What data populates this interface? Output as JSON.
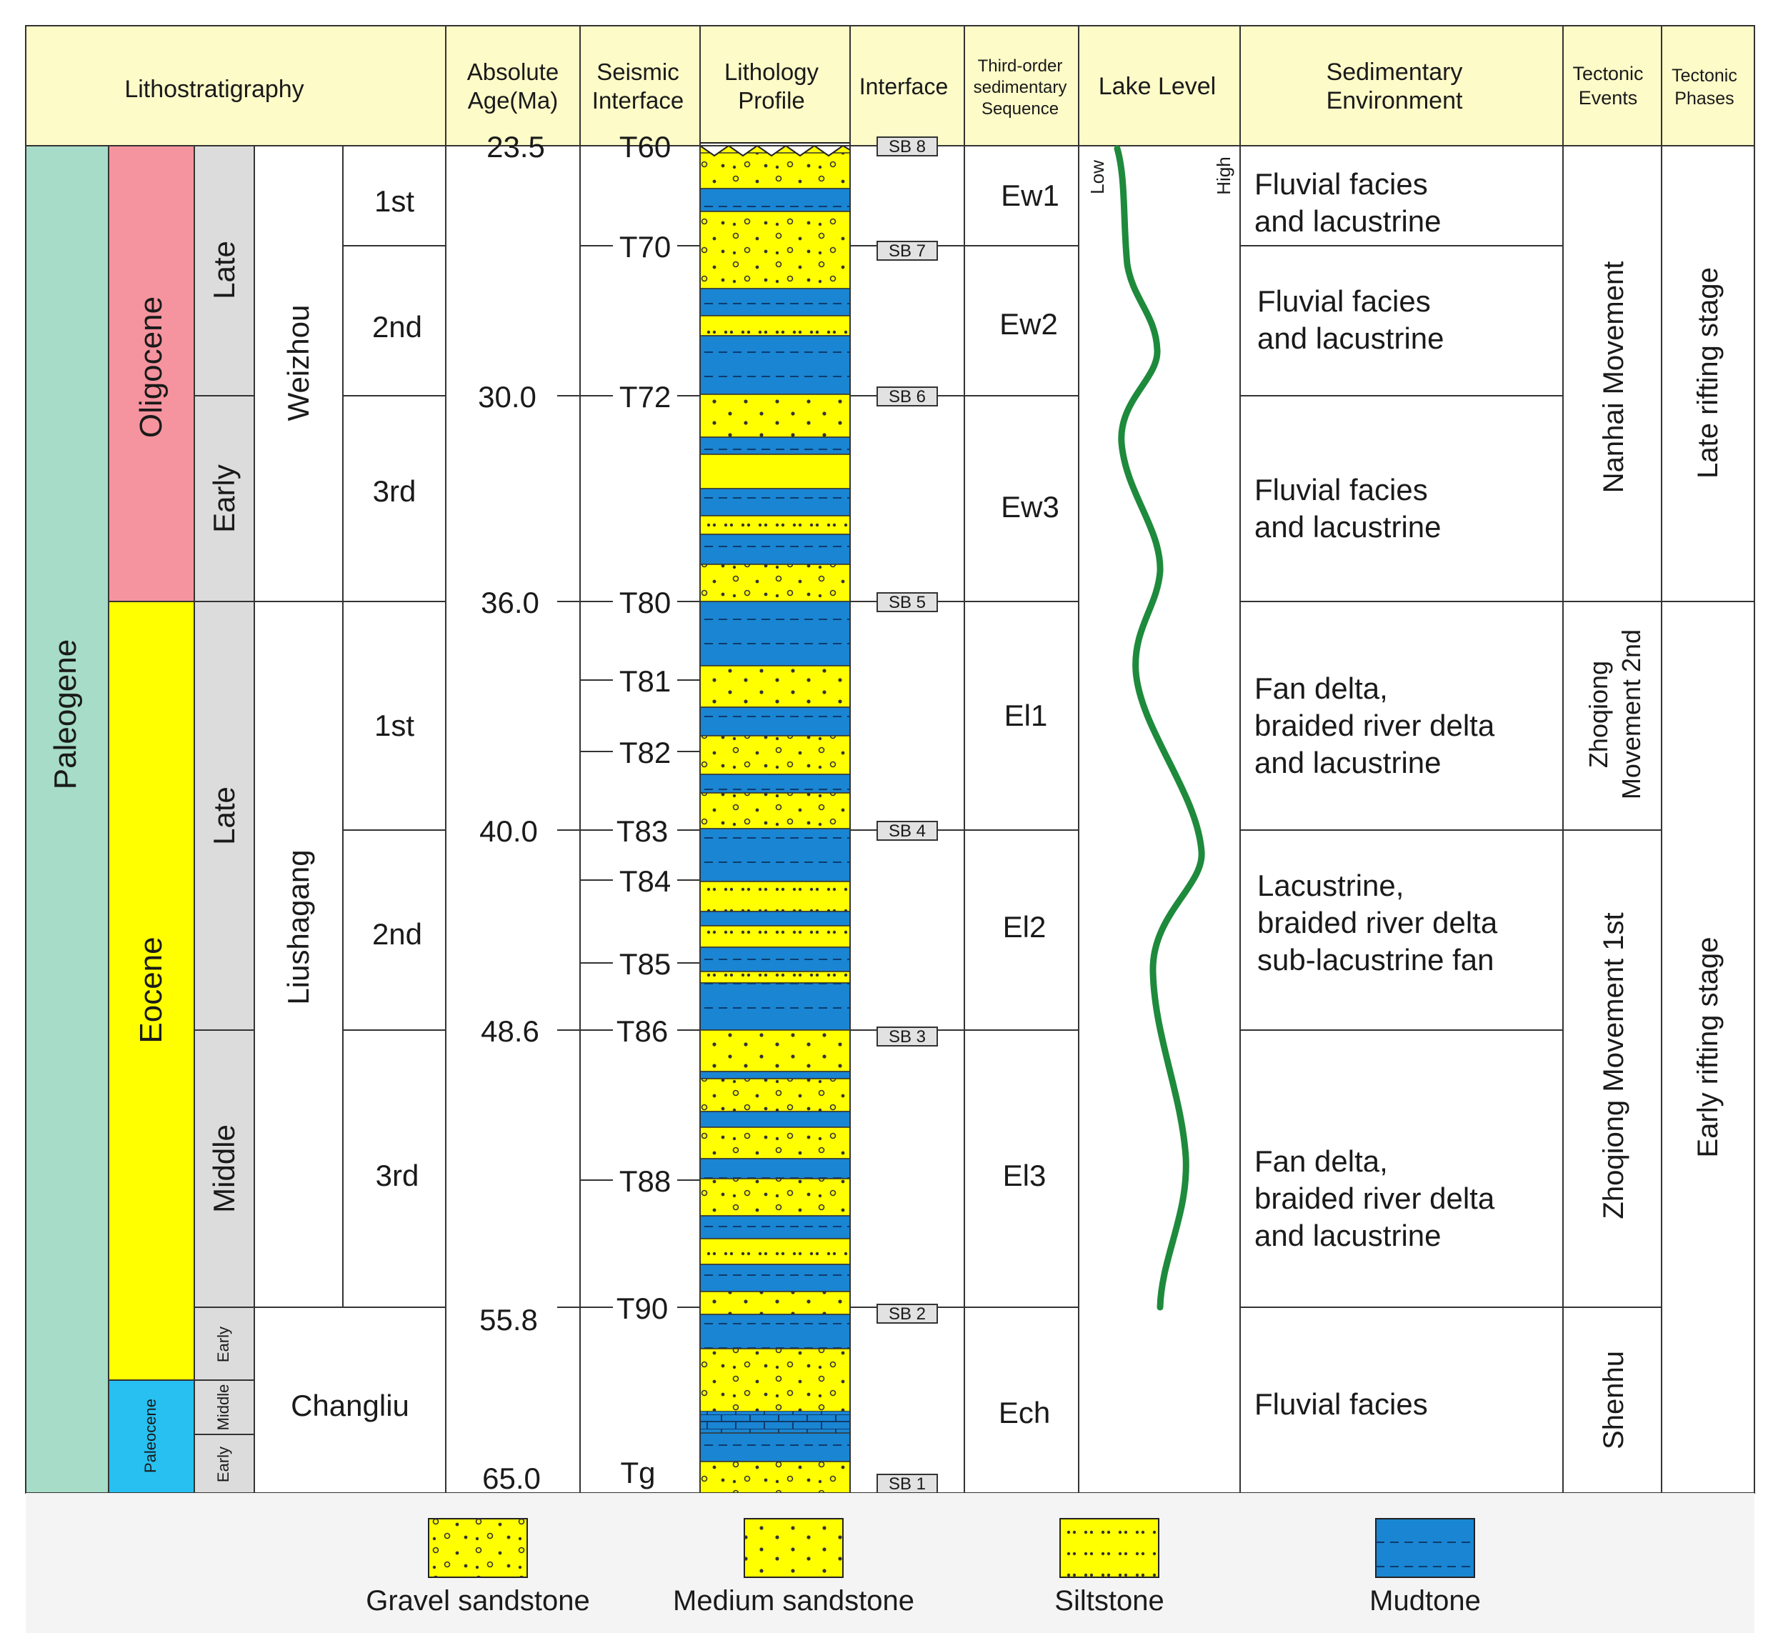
{
  "colors": {
    "header_bg": "#fdfbc8",
    "paleogene": "#a6dcc8",
    "oligocene": "#f5949e",
    "eocene": "#ffff00",
    "paleocene": "#27c0f0",
    "epoch_sub": "#dcdcdc",
    "sandstone": "#ffff00",
    "mudstone": "#1a85d2",
    "lake_curve": "#1e8a3c",
    "legend_bg": "#f4f4f4"
  },
  "headers": {
    "lithostratigraphy": "Lithostratigraphy",
    "absolute_age_1": "Absolute",
    "absolute_age_2": "Age(Ma)",
    "seismic_1": "Seismic",
    "seismic_2": "Interface",
    "lithology_1": "Lithology",
    "lithology_2": "Profile",
    "interface": "Interface",
    "sequence_1": "Third-order",
    "sequence_2": "sedimentary",
    "sequence_3": "Sequence",
    "lake_level": "Lake Level",
    "sed_env_1": "Sedimentary",
    "sed_env_2": "Environment",
    "tectonic_events_1": "Tectonic",
    "tectonic_events_2": "Events",
    "tectonic_phases_1": "Tectonic",
    "tectonic_phases_2": "Phases"
  },
  "system": "Paleogene",
  "series": {
    "oligocene": "Oligocene",
    "eocene": "Eocene",
    "paleocene": "Paleocene"
  },
  "subseries": {
    "olig_late": "Late",
    "olig_early": "Early",
    "eoc_late": "Late",
    "eoc_middle": "Middle",
    "eoc_early": "Early",
    "pal_middle": "Middle",
    "pal_early": "Early"
  },
  "formations": {
    "weizhou": "Weizhou",
    "liushagang": "Liushagang",
    "changliu": "Changliu"
  },
  "members": {
    "w1": "1st",
    "w2": "2nd",
    "w3": "3rd",
    "l1": "1st",
    "l2": "2nd",
    "l3": "3rd"
  },
  "ages": [
    "23.5",
    "30.0",
    "36.0",
    "40.0",
    "48.6",
    "55.8",
    "65.0"
  ],
  "seismic": [
    "T60",
    "T70",
    "T72",
    "T80",
    "T81",
    "T82",
    "T83",
    "T84",
    "T85",
    "T86",
    "T88",
    "T90",
    "Tg"
  ],
  "interfaces": [
    "SB 8",
    "SB 7",
    "SB 6",
    "SB 5",
    "SB 4",
    "SB 3",
    "SB 2",
    "SB 1"
  ],
  "sequences": [
    "Ew1",
    "Ew2",
    "Ew3",
    "El1",
    "El2",
    "El3",
    "Ech"
  ],
  "lake_level": {
    "low": "Low",
    "high": "High"
  },
  "environments": {
    "e1": [
      "Fluvial facies",
      "and lacustrine"
    ],
    "e2": [
      "Fluvial facies",
      "and lacustrine"
    ],
    "e3": [
      "Fluvial facies",
      "and lacustrine"
    ],
    "e4": [
      "Fan delta,",
      "braided river delta",
      "and lacustrine"
    ],
    "e5": [
      "Lacustrine,",
      "braided river delta",
      "sub-lacustrine fan"
    ],
    "e6": [
      "Fan delta,",
      "braided river delta",
      "and lacustrine"
    ],
    "e7": [
      "Fluvial facies"
    ]
  },
  "tectonic_events": {
    "nanhai": "Nanhai Movement",
    "zhoqiong2_a": "Zhoqiong",
    "zhoqiong2_b": "Movement 2nd",
    "zhoqiong1": "Zhoqiong Movement 1st",
    "shenhu": "Shenhu"
  },
  "tectonic_phases": {
    "late": "Late rifting stage",
    "early": "Early rifting stage"
  },
  "legend": {
    "gravel": "Gravel sandstone",
    "medium": "Medium sandstone",
    "silt": "Siltstone",
    "mud": "Mudtone"
  }
}
